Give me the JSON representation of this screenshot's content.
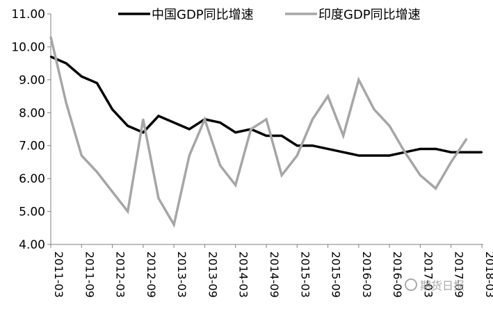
{
  "chart_data": {
    "type": "line",
    "categories": [
      "2011-03",
      "2011-06",
      "2011-09",
      "2011-12",
      "2012-03",
      "2012-06",
      "2012-09",
      "2012-12",
      "2013-03",
      "2013-06",
      "2013-09",
      "2013-12",
      "2014-03",
      "2014-06",
      "2014-09",
      "2014-12",
      "2015-03",
      "2015-06",
      "2015-09",
      "2015-12",
      "2016-03",
      "2016-06",
      "2016-09",
      "2016-12",
      "2017-03",
      "2017-06",
      "2017-09",
      "2017-12",
      "2018-03"
    ],
    "x_tick_labels": [
      "2011-03",
      "2011-09",
      "2012-03",
      "2012-09",
      "2013-03",
      "2013-09",
      "2014-03",
      "2014-09",
      "2015-03",
      "2015-09",
      "2016-03",
      "2016-09",
      "2017-03",
      "2017-09",
      "2018-03"
    ],
    "y_tick_labels": [
      "4.00",
      "5.00",
      "6.00",
      "7.00",
      "8.00",
      "9.00",
      "10.00",
      "11.00"
    ],
    "ylim": [
      4,
      11
    ],
    "grid": false,
    "legend_position": "top",
    "series": [
      {
        "name": "中国GDP同比增速",
        "color": "#000000",
        "values": [
          9.7,
          9.5,
          9.1,
          8.9,
          8.1,
          7.6,
          7.4,
          7.9,
          7.7,
          7.5,
          7.8,
          7.7,
          7.4,
          7.5,
          7.3,
          7.3,
          7.0,
          7.0,
          6.9,
          6.8,
          6.7,
          6.7,
          6.7,
          6.8,
          6.9,
          6.9,
          6.8,
          6.8,
          6.8
        ]
      },
      {
        "name": "印度GDP同比增速",
        "color": "#a6a6a6",
        "values": [
          10.3,
          8.3,
          6.7,
          6.2,
          5.6,
          5.0,
          7.8,
          5.4,
          4.6,
          6.7,
          7.8,
          6.4,
          5.8,
          7.5,
          7.8,
          6.1,
          6.7,
          7.8,
          8.5,
          7.3,
          9.0,
          8.1,
          7.6,
          6.8,
          6.1,
          5.7,
          6.5,
          7.2,
          null
        ]
      }
    ]
  },
  "watermark": {
    "text": "期货日报",
    "icon": "wechat-icon"
  }
}
